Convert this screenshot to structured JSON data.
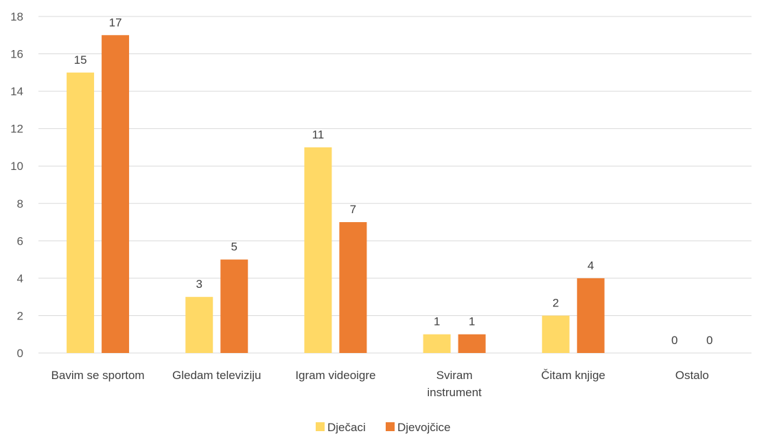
{
  "chart_data": {
    "type": "bar",
    "categories": [
      [
        "Bavim se sportom"
      ],
      [
        "Gledam televiziju"
      ],
      [
        "Igram videoigre"
      ],
      [
        "Sviram",
        "instrument"
      ],
      [
        "Čitam knjige"
      ],
      [
        "Ostalo"
      ]
    ],
    "series": [
      {
        "name": "Dječaci",
        "color": "#FFD966",
        "values": [
          15,
          3,
          11,
          1,
          2,
          0
        ]
      },
      {
        "name": "Djevojčice",
        "color": "#ED7D31",
        "values": [
          17,
          5,
          7,
          1,
          4,
          0
        ]
      }
    ],
    "ylim": [
      0,
      18
    ],
    "yticks": [
      0,
      2,
      4,
      6,
      8,
      10,
      12,
      14,
      16,
      18
    ],
    "grid": true,
    "legend_position": "bottom"
  }
}
